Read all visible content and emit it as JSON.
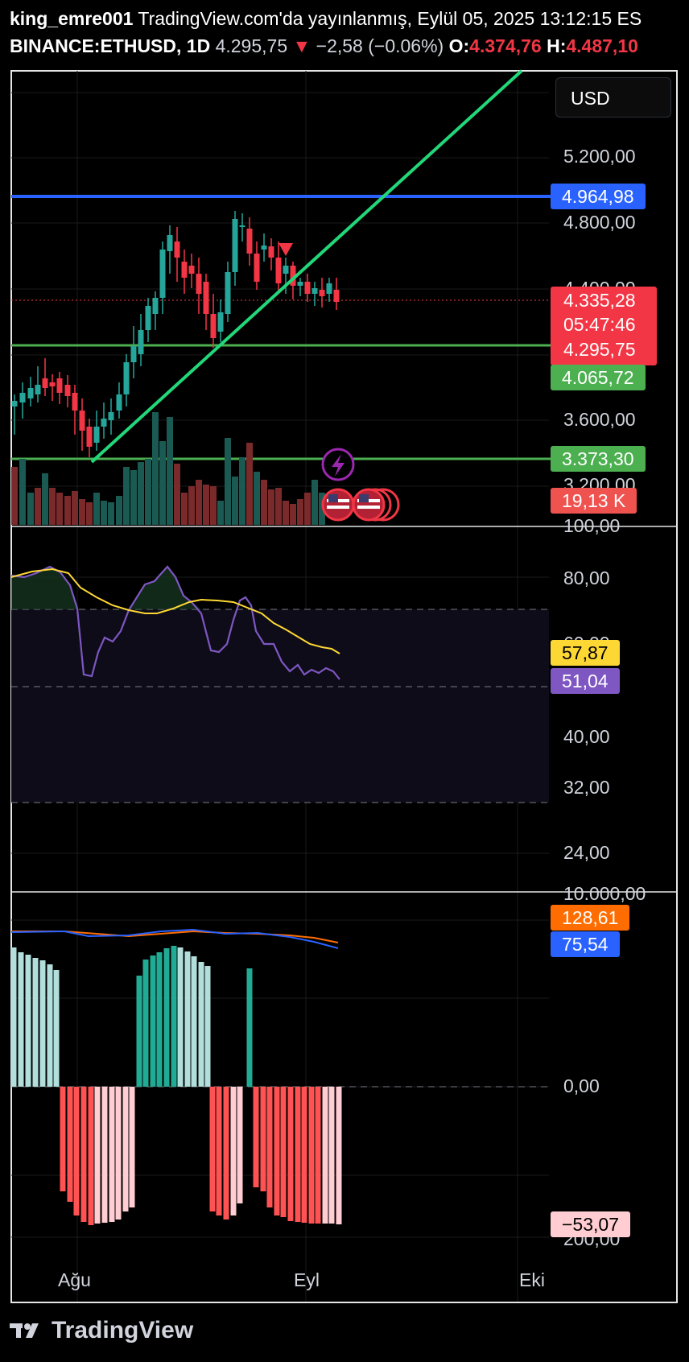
{
  "header": {
    "author": "king_emre001",
    "published": "TradingView.com'da yayınlanmış, Eylül 05, 2025 13:12:15 ES",
    "symbol": "BINANCE:ETHUSD, 1D",
    "price": "4.295,75",
    "change_arrow": "▼",
    "change": "−2,58 (−0.06%)",
    "o_label": "O:",
    "o_value": "4.374,76",
    "h_label": "H:",
    "h_value": "4.487,10"
  },
  "currency_button": "USD",
  "price_axis": [
    "5.200,00",
    "4.800,00",
    "4.400,00",
    "3.600,00",
    "3.200,00"
  ],
  "price_tags": {
    "blue_level": "4.964,98",
    "last_price": "4.335,28",
    "countdown": "05:47:46",
    "close": "4.295,75",
    "green_level": "4.065,72",
    "support_level": "3.373,30",
    "volume": "19,13 K"
  },
  "rsi_axis": [
    "100,00",
    "80,00",
    "60,00",
    "40,00",
    "32,00",
    "24,00"
  ],
  "rsi_tags": {
    "ma": "57,87",
    "rsi": "51,04"
  },
  "macd_axis": [
    "10.000,00",
    "0,00",
    "200,00"
  ],
  "macd_tags": {
    "signal": "128,61",
    "macd": "75,54",
    "hist": "−53,07"
  },
  "time_axis": [
    "Ağu",
    "Eyl",
    "Eki"
  ],
  "brand": "TradingView",
  "colors": {
    "up": "#26a69a",
    "down": "#f23645",
    "blue": "#2962ff",
    "green": "#4caf50",
    "trend": "#22d77a",
    "rsi": "#7e57c2",
    "rsi_ma": "#fdd835",
    "macd": "#2962ff",
    "signal": "#ff6d00"
  },
  "icons": [
    "lightning-icon",
    "us-flag-icon",
    "tradingview-logo-icon"
  ]
}
